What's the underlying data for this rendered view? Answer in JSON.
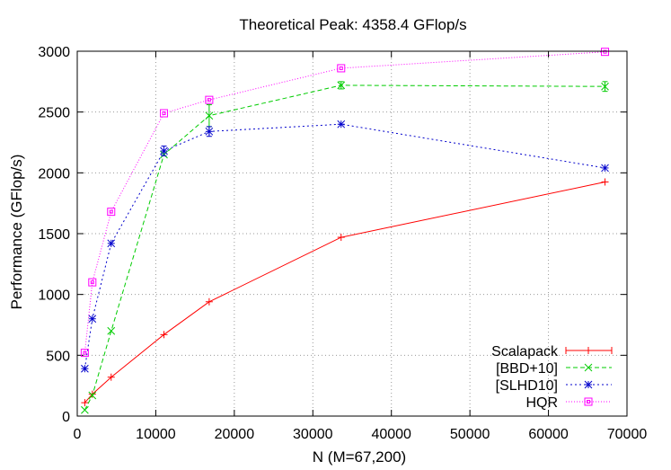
{
  "chart_data": {
    "type": "line",
    "title": "Theoretical Peak: 4358.4 GFlop/s",
    "xlabel": "N (M=67,200)",
    "ylabel": "Performance (GFlop/s)",
    "xlim": [
      0,
      70000
    ],
    "ylim": [
      0,
      3000
    ],
    "xticks": [
      0,
      10000,
      20000,
      30000,
      40000,
      50000,
      60000,
      70000
    ],
    "yticks": [
      0,
      500,
      1000,
      1500,
      2000,
      2500,
      3000
    ],
    "grid": true,
    "legend_position": "bottom-right",
    "series": [
      {
        "name": "Scalapack",
        "color": "#ff0000",
        "marker": "plus",
        "dash": "solid",
        "x": [
          960,
          1920,
          4320,
          11040,
          16800,
          33600,
          67200
        ],
        "y": [
          110,
          180,
          320,
          670,
          940,
          1470,
          1925
        ],
        "yerr": [
          0,
          0,
          0,
          0,
          0,
          0,
          0
        ]
      },
      {
        "name": "[BBD+10]",
        "color": "#00cc00",
        "marker": "cross",
        "dash": "dashed",
        "x": [
          960,
          1920,
          4320,
          11040,
          16800,
          33600,
          67200
        ],
        "y": [
          50,
          170,
          700,
          2150,
          2470,
          2720,
          2710
        ],
        "yerr": [
          0,
          0,
          0,
          0,
          90,
          30,
          40
        ]
      },
      {
        "name": "[SLHD10]",
        "color": "#0000cc",
        "marker": "star",
        "dash": "dotted",
        "x": [
          960,
          1920,
          4320,
          11040,
          16800,
          33600,
          67200
        ],
        "y": [
          390,
          800,
          1420,
          2180,
          2340,
          2400,
          2040
        ],
        "yerr": [
          0,
          0,
          0,
          40,
          40,
          0,
          0
        ]
      },
      {
        "name": "HQR",
        "color": "#ff00ff",
        "marker": "square",
        "dash": "dotted-fine",
        "x": [
          960,
          1920,
          4320,
          11040,
          16800,
          33600,
          67200
        ],
        "y": [
          520,
          1100,
          1680,
          2490,
          2600,
          2860,
          2995
        ],
        "yerr": [
          0,
          0,
          0,
          0,
          0,
          0,
          0
        ]
      }
    ]
  }
}
